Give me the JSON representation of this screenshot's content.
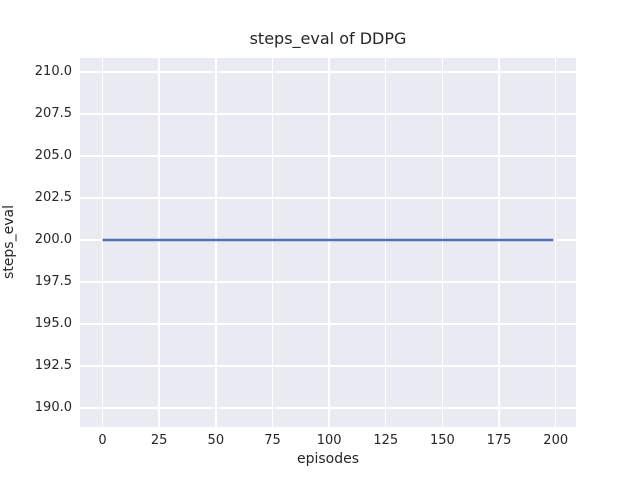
{
  "chart_data": {
    "type": "line",
    "title": "steps_eval of DDPG",
    "xlabel": "episodes",
    "ylabel": "steps_eval",
    "xlim": [
      -9.95,
      208.95
    ],
    "ylim": [
      188.87,
      210.83
    ],
    "xticks": [
      0,
      25,
      50,
      75,
      100,
      125,
      150,
      175,
      200
    ],
    "xtick_labels": [
      "0",
      "25",
      "50",
      "75",
      "100",
      "125",
      "150",
      "175",
      "200"
    ],
    "yticks": [
      190.0,
      192.5,
      195.0,
      197.5,
      200.0,
      202.5,
      205.0,
      207.5,
      210.0
    ],
    "ytick_labels": [
      "190.0",
      "192.5",
      "195.0",
      "197.5",
      "200.0",
      "202.5",
      "205.0",
      "207.5",
      "210.0"
    ],
    "grid": true,
    "legend": false,
    "series": [
      {
        "name": "steps_eval",
        "color": "#4c72b0",
        "line_width": 2.5,
        "x": [
          0,
          199
        ],
        "y": [
          200,
          200
        ]
      }
    ],
    "style": {
      "figure_background": "#ffffff",
      "plot_background": "#eaeaf2",
      "grid_color": "#ffffff",
      "text_color": "#262626"
    }
  }
}
